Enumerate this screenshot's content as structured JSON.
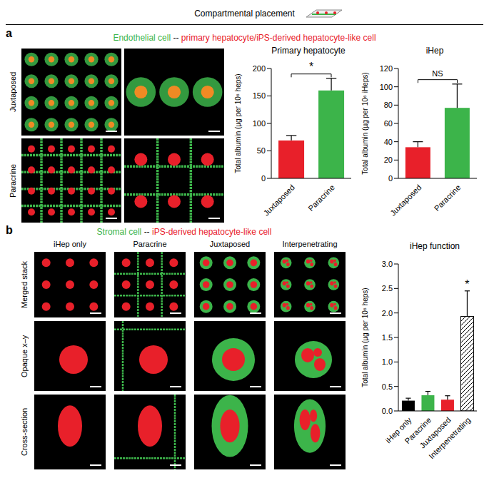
{
  "figure": {
    "header": "Compartmental placement",
    "panels": [
      {
        "letter": "a",
        "legend": {
          "green": "Endothelial cell",
          "separator": "--",
          "red": "primary hepatocyte/iPS-derived hepatocyte-like cell"
        },
        "row_labels": [
          "Juxtaposed",
          "Paracrine"
        ]
      },
      {
        "letter": "b",
        "legend": {
          "green": "Stromal cell",
          "separator": "--",
          "red": "iPS-derived hepatocyte-like cell"
        },
        "column_labels": [
          "iHep only",
          "Paracrine",
          "Juxtaposed",
          "Interpenetrating"
        ],
        "row_labels": [
          "Merged stack",
          "Opaque x–y",
          "Cross-section"
        ]
      }
    ]
  },
  "chart_data": [
    {
      "type": "bar",
      "title": "Primary hepatocyte",
      "y_label": "Total albumin (µg per 10⁶ heps)",
      "categories": [
        "Juxtaposed",
        "Paracrine"
      ],
      "values": [
        69,
        160
      ],
      "errors": [
        9,
        22
      ],
      "colors": [
        "#e8202a",
        "#3cb44a"
      ],
      "ylim": [
        0,
        200
      ],
      "yticks": [
        0,
        50,
        100,
        150,
        200
      ],
      "annotations": [
        {
          "text": "*",
          "between": [
            "Juxtaposed",
            "Paracrine"
          ]
        }
      ]
    },
    {
      "type": "bar",
      "title": "iHep",
      "y_label": "Total albumin (µg per 10⁶ iHeps)",
      "categories": [
        "Juxtaposed",
        "Paracrine"
      ],
      "values": [
        34,
        77
      ],
      "errors": [
        6,
        26
      ],
      "colors": [
        "#e8202a",
        "#3cb44a"
      ],
      "ylim": [
        0,
        120
      ],
      "yticks": [
        0,
        20,
        40,
        60,
        80,
        100,
        120
      ],
      "annotations": [
        {
          "text": "NS",
          "between": [
            "Juxtaposed",
            "Paracrine"
          ]
        }
      ]
    },
    {
      "type": "bar",
      "title": "iHep function",
      "y_label": "Total albumin (µg per 10⁶ heps)",
      "categories": [
        "iHep only",
        "Paracrine",
        "Juxtaposed",
        "Interpenetrating"
      ],
      "values": [
        0.21,
        0.32,
        0.23,
        1.93
      ],
      "errors": [
        0.05,
        0.08,
        0.08,
        0.52
      ],
      "colors": [
        "#000000",
        "#3cb44a",
        "#e8202a",
        "#ffffff"
      ],
      "ylim": [
        0,
        3
      ],
      "yticks": [
        {
          "value": 0,
          "label": "0.0"
        },
        {
          "value": 0.5,
          "label": "0.5"
        },
        {
          "value": 1,
          "label": "1.0"
        },
        {
          "value": 1.5,
          "label": "1.5"
        },
        {
          "value": 2,
          "label": "2.0"
        },
        {
          "value": 2.5,
          "label": "2.5"
        },
        {
          "value": 3,
          "label": "3.0"
        }
      ],
      "annotations": [
        {
          "text": "*",
          "at": "Interpenetrating"
        }
      ]
    }
  ]
}
